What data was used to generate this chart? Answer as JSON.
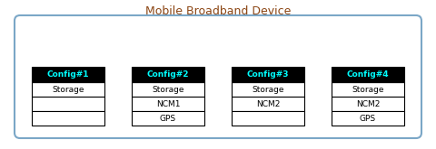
{
  "title": "Mobile Broadband Device",
  "title_color": "#8B4513",
  "title_fontsize": 9,
  "container_edgecolor": "#7BA7C7",
  "container_facecolor": "#FFFFFF",
  "configs": [
    {
      "header": "Config#1",
      "rows": [
        "Storage",
        "",
        ""
      ]
    },
    {
      "header": "Config#2",
      "rows": [
        "Storage",
        "NCM1",
        "GPS"
      ]
    },
    {
      "header": "Config#3",
      "rows": [
        "Storage",
        "NCM2",
        ""
      ]
    },
    {
      "header": "Config#4",
      "rows": [
        "Storage",
        "NCM2",
        "GPS"
      ]
    }
  ],
  "header_bg": "#000000",
  "header_fg": "#00FFFF",
  "row_bg": "#FFFFFF",
  "row_fg": "#000000",
  "row_border": "#000000",
  "header_fontsize": 6.5,
  "row_fontsize": 6.5,
  "fig_bg": "#FFFFFF"
}
